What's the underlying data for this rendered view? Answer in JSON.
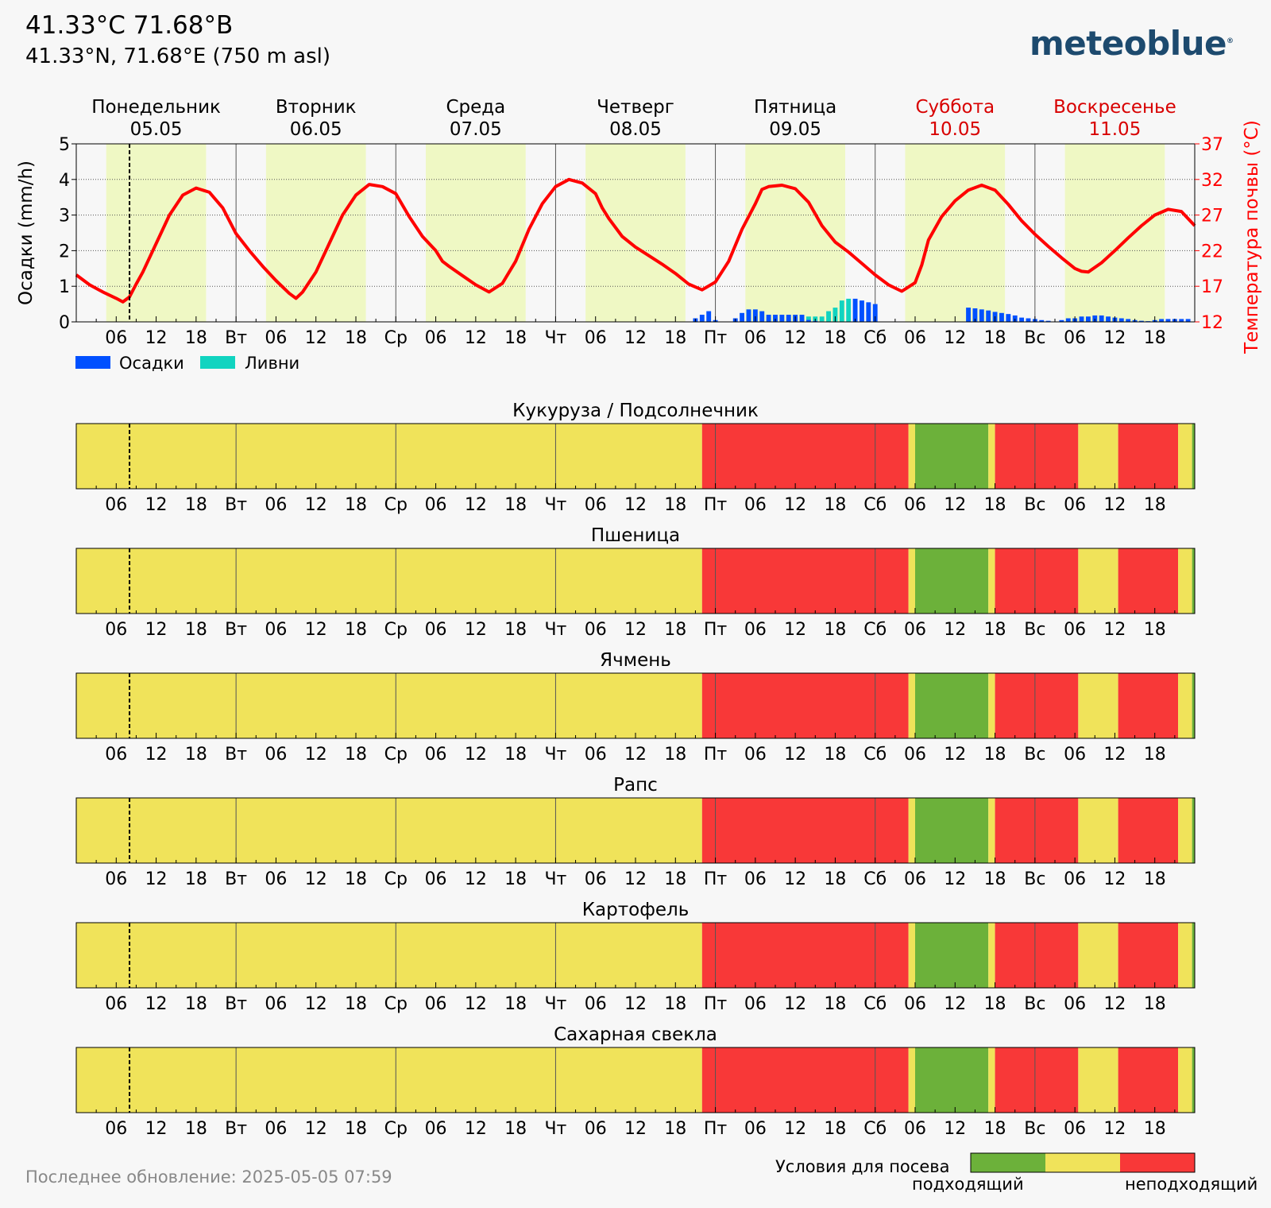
{
  "header": {
    "title": "41.33°С 71.68°В",
    "subtitle": "41.33°N, 71.68°E (750 m asl)",
    "logo": "meteoblue",
    "logo_mark": "®"
  },
  "footer": {
    "last_update": "Последнее обновление: 2025-05-05 07:59",
    "legend_title": "Условия для посева",
    "legend_good": "подходящий",
    "legend_bad": "неподходящий"
  },
  "colors": {
    "precip": "#0050ff",
    "showers": "#11d4c0",
    "soil_temp": "#ff0000",
    "daylight": "#eff8c4",
    "suitable": "#6cb13a",
    "marginal": "#f0e35a",
    "unsuitable": "#f83838",
    "weekend": "#d80000"
  },
  "chart_data": [
    {
      "type": "bar+line",
      "days": [
        {
          "name": "Понедельник",
          "date": "05.05",
          "weekend": false
        },
        {
          "name": "Вторник",
          "date": "06.05",
          "weekend": false
        },
        {
          "name": "Среда",
          "date": "07.05",
          "weekend": false
        },
        {
          "name": "Четверг",
          "date": "08.05",
          "weekend": false
        },
        {
          "name": "Пятница",
          "date": "09.05",
          "weekend": false
        },
        {
          "name": "Суббота",
          "date": "10.05",
          "weekend": true
        },
        {
          "name": "Воскресенье",
          "date": "11.05",
          "weekend": true
        }
      ],
      "x_tick_labels": [
        "06",
        "12",
        "18",
        "Вт",
        "06",
        "12",
        "18",
        "Ср",
        "06",
        "12",
        "18",
        "Чт",
        "06",
        "12",
        "18",
        "Пт",
        "06",
        "12",
        "18",
        "Сб",
        "06",
        "12",
        "18",
        "Вс",
        "06",
        "12",
        "18"
      ],
      "ylabel_left": "Осадки (mm/h)",
      "ylabel_right": "Температура почвы (°C)",
      "ylim_left": [
        0,
        5
      ],
      "yticks_left": [
        "0",
        "1",
        "2",
        "3",
        "4",
        "5"
      ],
      "ylim_right": [
        12,
        37
      ],
      "yticks_right": [
        "12",
        "17",
        "22",
        "27",
        "32",
        "37"
      ],
      "current_time_hour": 8,
      "daylight_hours": [
        [
          4.5,
          19.5
        ]
      ],
      "legend": [
        "Осадки",
        "Ливни"
      ],
      "soil_temperature": {
        "name": "Температура почвы",
        "hours": [
          0,
          2,
          4,
          6,
          7,
          8,
          9,
          10,
          12,
          14,
          16,
          18,
          20,
          22,
          24,
          26,
          28,
          30,
          32,
          33,
          34,
          36,
          38,
          40,
          42,
          44,
          46,
          48,
          50,
          52,
          54,
          55,
          56,
          58,
          60,
          62,
          64,
          66,
          68,
          70,
          72,
          74,
          76,
          78,
          79,
          80,
          82,
          84,
          86,
          88,
          90,
          92,
          94,
          96,
          98,
          100,
          102,
          103,
          104,
          106,
          108,
          110,
          112,
          114,
          116,
          118,
          120,
          122,
          124,
          126,
          127,
          128,
          130,
          132,
          134,
          136,
          138,
          140,
          142,
          144,
          146,
          148,
          150,
          151,
          152,
          154,
          156,
          158,
          160,
          162,
          164,
          166,
          168
        ],
        "values": [
          18.6,
          17.2,
          16.2,
          15.3,
          14.8,
          15.5,
          17.3,
          19.0,
          23.0,
          27.0,
          29.8,
          30.8,
          30.2,
          28.0,
          24.4,
          22.0,
          19.8,
          17.8,
          16.0,
          15.3,
          16.2,
          19.0,
          23.0,
          27.0,
          29.8,
          31.3,
          31.0,
          30.0,
          26.8,
          24.0,
          22.0,
          20.5,
          19.8,
          18.5,
          17.2,
          16.2,
          17.4,
          20.5,
          25.0,
          28.6,
          31.0,
          32.0,
          31.5,
          30.0,
          28.0,
          26.5,
          24.0,
          22.5,
          21.3,
          20.1,
          18.8,
          17.3,
          16.5,
          17.6,
          20.5,
          25.0,
          28.6,
          30.6,
          31.0,
          31.2,
          30.7,
          28.8,
          25.5,
          23.2,
          21.8,
          20.2,
          18.6,
          17.2,
          16.3,
          17.5,
          20.0,
          23.5,
          26.8,
          29.0,
          30.5,
          31.2,
          30.5,
          28.5,
          26.2,
          24.3,
          22.6,
          21.0,
          19.5,
          19.1,
          19.0,
          20.3,
          22.0,
          23.8,
          25.5,
          27.0,
          27.8,
          27.5,
          25.5
        ]
      },
      "precipitation": {
        "name": "Осадки",
        "hours": [
          93,
          94,
          95,
          96,
          99,
          100,
          101,
          102,
          103,
          104,
          105,
          106,
          107,
          108,
          109,
          110,
          111,
          112,
          113,
          114,
          115,
          116,
          117,
          118,
          119,
          120,
          134,
          135,
          136,
          137,
          138,
          139,
          140,
          141,
          142,
          143,
          144,
          145,
          146,
          148,
          149,
          150,
          151,
          152,
          153,
          154,
          155,
          156,
          157,
          158,
          159,
          160,
          161,
          162,
          163,
          164,
          165,
          166,
          167
        ],
        "values": [
          0.1,
          0.2,
          0.3,
          0.05,
          0.1,
          0.25,
          0.35,
          0.35,
          0.3,
          0.2,
          0.2,
          0.2,
          0.2,
          0.2,
          0.2,
          0.15,
          0.15,
          0.15,
          0.3,
          0.4,
          0.6,
          0.65,
          0.65,
          0.6,
          0.55,
          0.5,
          0.4,
          0.38,
          0.35,
          0.32,
          0.28,
          0.25,
          0.22,
          0.18,
          0.12,
          0.1,
          0.08,
          0.05,
          0.03,
          0.05,
          0.1,
          0.1,
          0.15,
          0.15,
          0.18,
          0.18,
          0.15,
          0.12,
          0.1,
          0.08,
          0.05,
          0.03,
          0.02,
          0.05,
          0.08,
          0.08,
          0.08,
          0.08,
          0.08
        ],
        "shower_share": [
          0,
          0,
          0,
          0,
          0,
          0,
          0,
          0,
          0,
          0,
          0,
          0,
          0,
          0,
          0,
          0.6,
          0.8,
          0.9,
          1,
          1,
          1,
          1,
          0,
          0,
          0,
          0,
          0,
          0,
          0,
          0,
          0,
          0,
          0,
          0,
          0,
          0,
          0,
          0,
          0,
          0,
          0,
          0,
          0,
          0,
          0,
          0,
          0,
          0,
          0,
          0,
          0,
          0,
          0,
          0,
          0,
          0,
          0,
          0,
          0
        ]
      }
    },
    {
      "type": "heatmap",
      "rows": [
        "Кукуруза / Подсолнечник",
        "Пшеница",
        "Ячмень",
        "Рапс",
        "Картофель",
        "Сахарная свекла"
      ],
      "levels": {
        "suitable": "подходящий",
        "marginal": "",
        "unsuitable": "неподходящий"
      },
      "x_tick_labels": [
        "06",
        "12",
        "18",
        "Вт",
        "06",
        "12",
        "18",
        "Ср",
        "06",
        "12",
        "18",
        "Чт",
        "06",
        "12",
        "18",
        "Пт",
        "06",
        "12",
        "18",
        "Сб",
        "06",
        "12",
        "18",
        "Вс",
        "06",
        "12",
        "18"
      ],
      "segments": [
        {
          "from": 0,
          "to": 94,
          "level": "marginal"
        },
        {
          "from": 94,
          "to": 125,
          "level": "unsuitable"
        },
        {
          "from": 125,
          "to": 126,
          "level": "marginal"
        },
        {
          "from": 126,
          "to": 137,
          "level": "suitable"
        },
        {
          "from": 137,
          "to": 138,
          "level": "marginal"
        },
        {
          "from": 138,
          "to": 150.5,
          "level": "unsuitable"
        },
        {
          "from": 150.5,
          "to": 156.5,
          "level": "marginal"
        },
        {
          "from": 156.5,
          "to": 165.5,
          "level": "unsuitable"
        },
        {
          "from": 165.5,
          "to": 167.6,
          "level": "marginal"
        },
        {
          "from": 167.6,
          "to": 168,
          "level": "suitable"
        }
      ]
    }
  ]
}
